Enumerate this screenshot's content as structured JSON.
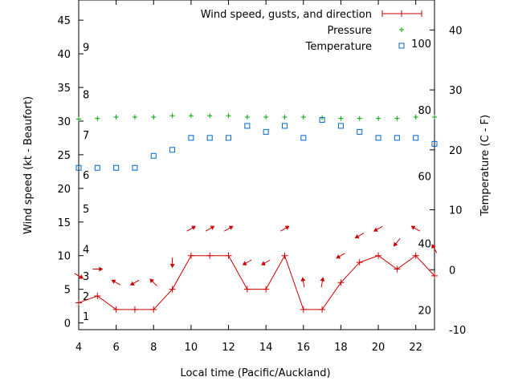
{
  "chart_data": {
    "type": "line",
    "xlabel": "Local time (Pacific/Auckland)",
    "ylabel_left": "Wind speed (kt - Beaufort)",
    "ylabel_right": "Temperature (C - F)",
    "xlim": [
      4,
      23
    ],
    "ylim_left": [
      -1,
      48
    ],
    "ylim_right": [
      -10,
      45
    ],
    "x_ticks": [
      4,
      6,
      8,
      10,
      12,
      14,
      16,
      18,
      20,
      22
    ],
    "y_ticks_left": [
      0,
      5,
      10,
      15,
      20,
      25,
      30,
      35,
      40,
      45
    ],
    "y_ticks_right": [
      -10,
      0,
      10,
      20,
      30,
      40
    ],
    "beaufort_labels": [
      {
        "label": "1",
        "kt": 1
      },
      {
        "label": "2",
        "kt": 4
      },
      {
        "label": "3",
        "kt": 7
      },
      {
        "label": "4",
        "kt": 11
      },
      {
        "label": "5",
        "kt": 17
      },
      {
        "label": "6",
        "kt": 22
      },
      {
        "label": "7",
        "kt": 28
      },
      {
        "label": "8",
        "kt": 34
      },
      {
        "label": "9",
        "kt": 41
      }
    ],
    "fahrenheit_labels": [
      {
        "label": "20",
        "celsius": -6.7
      },
      {
        "label": "40",
        "celsius": 4.4
      },
      {
        "label": "60",
        "celsius": 15.6
      },
      {
        "label": "80",
        "celsius": 26.7
      },
      {
        "label": "100",
        "celsius": 37.8
      }
    ],
    "legend": {
      "position": "top-right",
      "entries": [
        "Wind speed, gusts, and direction",
        "Pressure",
        "Temperature"
      ]
    },
    "colors": {
      "wind": "#cc0000",
      "pressure": "#00aa00",
      "temperature": "#0066cc"
    },
    "series": [
      {
        "name": "Wind speed, gusts, and direction",
        "axis": "left",
        "x": [
          4,
          5,
          6,
          7,
          8,
          9,
          10,
          11,
          12,
          13,
          14,
          15,
          16,
          17,
          18,
          19,
          20,
          21,
          22,
          23
        ],
        "values": [
          3,
          4,
          2,
          2,
          2,
          5,
          10,
          10,
          10,
          5,
          5,
          10,
          2,
          2,
          6,
          9,
          10,
          8,
          10,
          7
        ],
        "direction_deg": [
          120,
          90,
          300,
          240,
          315,
          180,
          60,
          60,
          60,
          240,
          240,
          60,
          350,
          10,
          240,
          240,
          240,
          220,
          300,
          330
        ]
      },
      {
        "name": "Pressure",
        "axis": "left",
        "x": [
          4,
          5,
          6,
          7,
          8,
          9,
          10,
          11,
          12,
          13,
          14,
          15,
          16,
          17,
          18,
          19,
          20,
          21,
          22,
          23
        ],
        "values": [
          30.3,
          30.4,
          30.6,
          30.6,
          30.6,
          30.8,
          30.8,
          30.8,
          30.8,
          30.6,
          30.6,
          30.6,
          30.6,
          30.5,
          30.4,
          30.4,
          30.4,
          30.4,
          30.6,
          30.6
        ]
      },
      {
        "name": "Temperature",
        "axis": "right",
        "x": [
          4,
          5,
          6,
          7,
          8,
          9,
          10,
          11,
          12,
          13,
          14,
          15,
          16,
          17,
          18,
          19,
          20,
          21,
          22,
          23
        ],
        "values": [
          17,
          17,
          17,
          17,
          19,
          20,
          22,
          22,
          22,
          24,
          23,
          24,
          22,
          25,
          24,
          23,
          22,
          22,
          22,
          21
        ]
      }
    ]
  }
}
